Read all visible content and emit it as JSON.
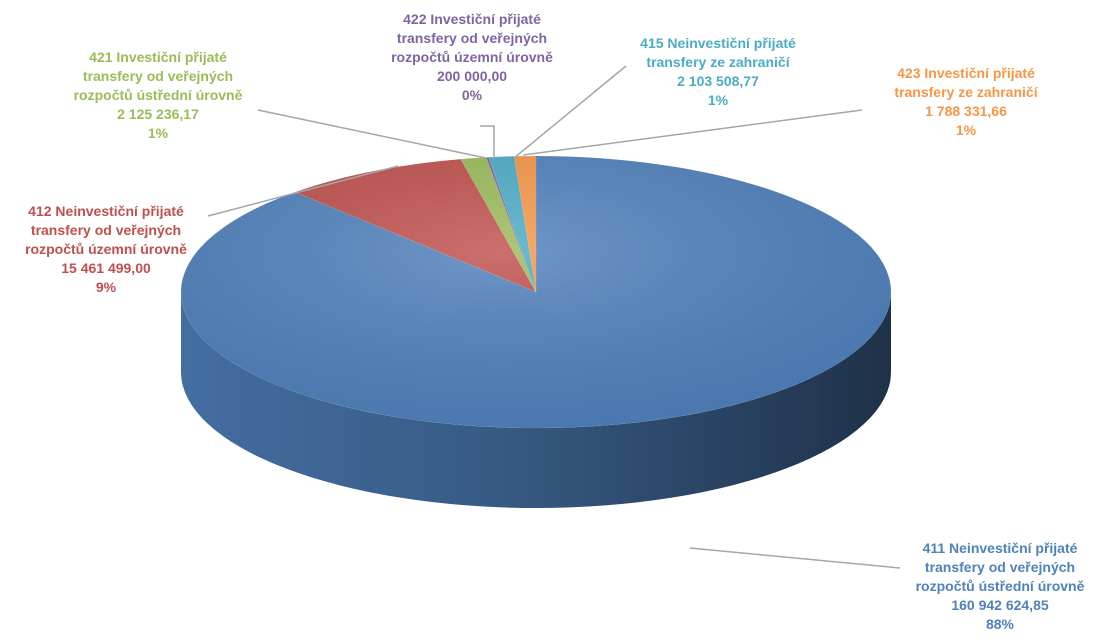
{
  "chart_data": {
    "type": "pie",
    "title": "",
    "slices": [
      {
        "code": "411",
        "lines": [
          "411 Neinvestiční přijaté",
          "transfery od veřejných",
          "rozpočtů ústřední úrovně"
        ],
        "value_text": "160 942 624,85",
        "percent_text": "88%",
        "value": 160942624.85,
        "color": "#4F81BD",
        "label_color": "#4F81BD"
      },
      {
        "code": "412",
        "lines": [
          "412 Neinvestiční přijaté",
          "transfery od veřejných",
          "rozpočtů územní úrovně"
        ],
        "value_text": "15 461 499,00",
        "percent_text": "9%",
        "value": 15461499.0,
        "color": "#C0504D",
        "label_color": "#C0504D"
      },
      {
        "code": "421",
        "lines": [
          "421 Investiční přijaté",
          "transfery od veřejných",
          "rozpočtů ústřední úrovně"
        ],
        "value_text": "2 125 236,17",
        "percent_text": "1%",
        "value": 2125236.17,
        "color": "#9BBB59",
        "label_color": "#9BBB59"
      },
      {
        "code": "422",
        "lines": [
          "422 Investiční přijaté",
          "transfery od veřejných",
          "rozpočtů územní úrovně"
        ],
        "value_text": "200 000,00",
        "percent_text": "0%",
        "value": 200000.0,
        "color": "#8064A2",
        "label_color": "#8064A2"
      },
      {
        "code": "415",
        "lines": [
          "415 Neinvestiční přijaté",
          "transfery ze zahraničí"
        ],
        "value_text": "2 103 508,77",
        "percent_text": "1%",
        "value": 2103508.77,
        "color": "#4BACC6",
        "label_color": "#4BACC6"
      },
      {
        "code": "423",
        "lines": [
          "423 Investiční přijaté",
          "transfery ze zahraničí"
        ],
        "value_text": "1 788 331,66",
        "percent_text": "1%",
        "value": 1788331.66,
        "color": "#F79646",
        "label_color": "#F79646"
      }
    ],
    "legend": "none",
    "style": "3d-pie"
  }
}
